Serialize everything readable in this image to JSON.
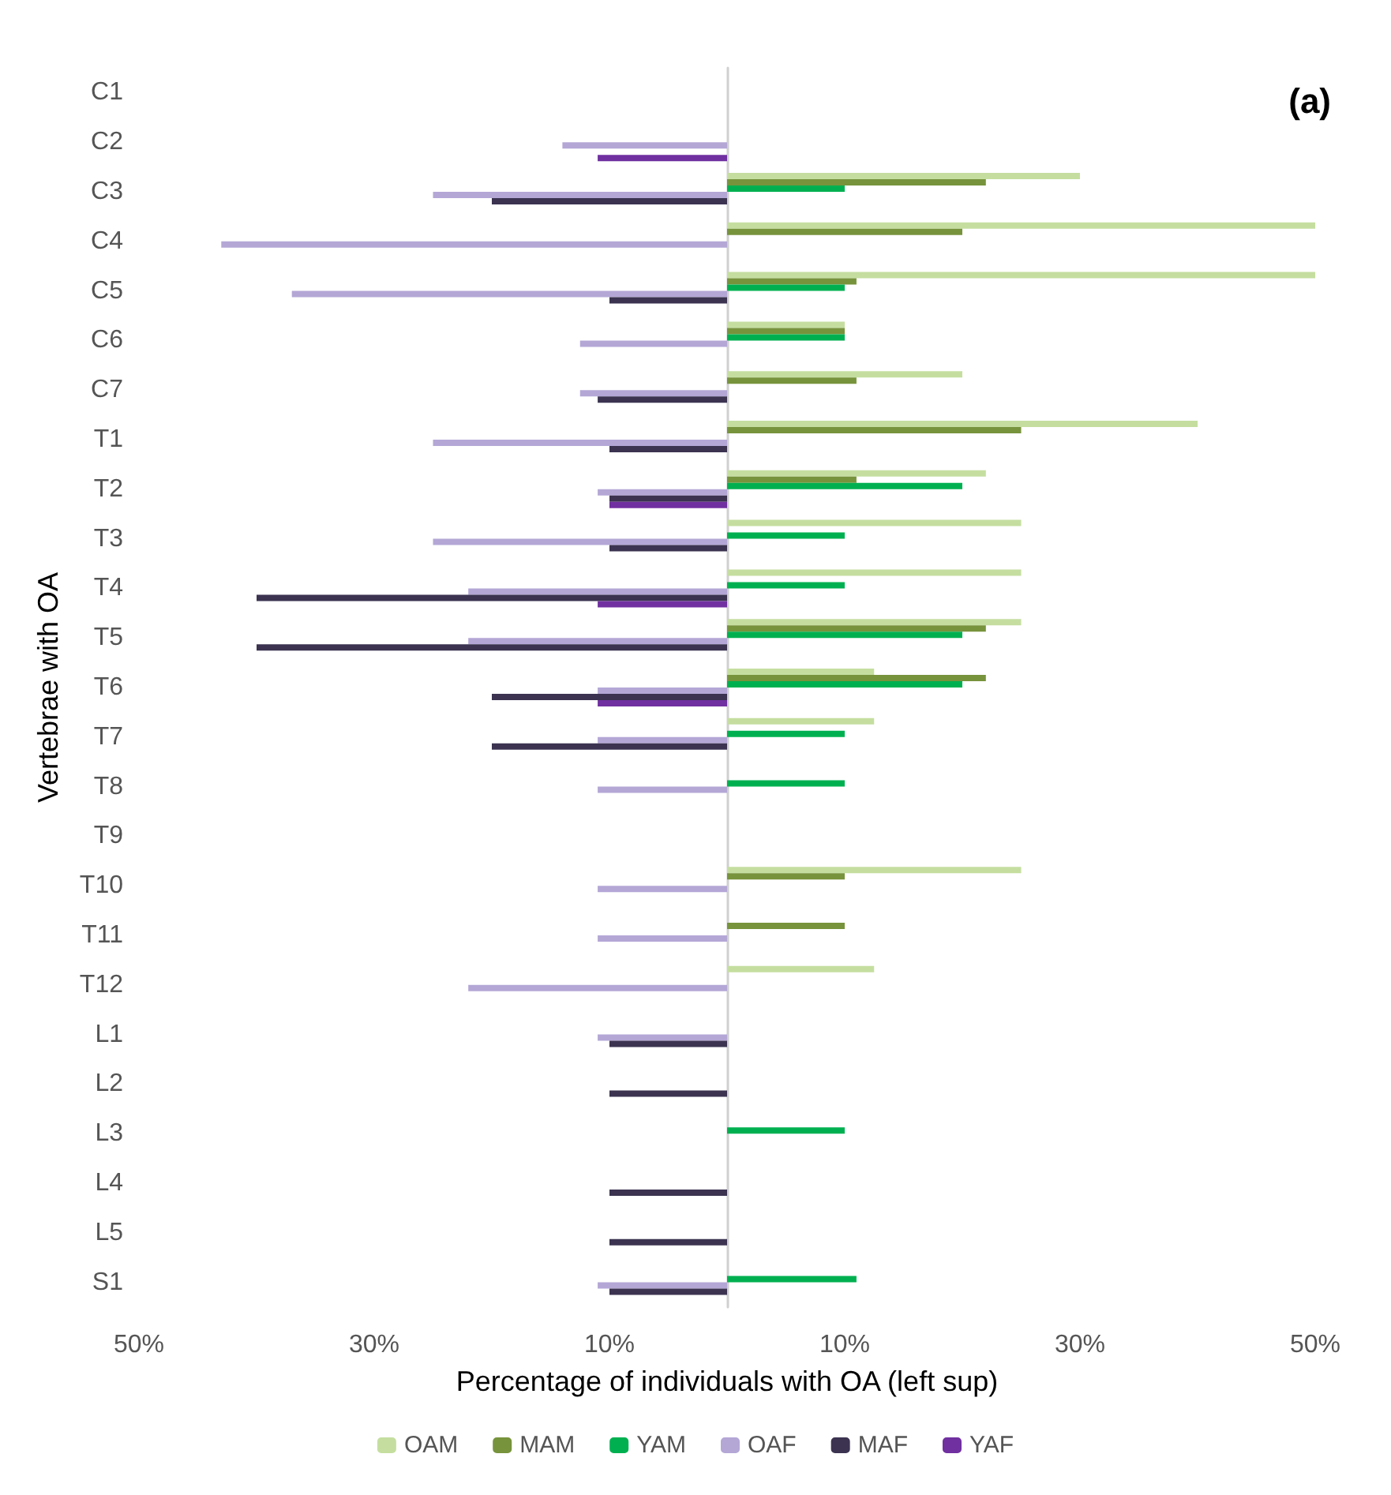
{
  "chart_data": {
    "type": "bar",
    "orientation": "horizontal",
    "xlabel": "Percentage of individuals with OA (left sup)",
    "ylabel": "Vertebrae with OA",
    "annotations": [
      "(a)"
    ],
    "categories": [
      "C1",
      "C2",
      "C3",
      "C4",
      "C5",
      "C6",
      "C7",
      "T1",
      "T2",
      "T3",
      "T4",
      "T5",
      "T6",
      "T7",
      "T8",
      "T9",
      "T10",
      "T11",
      "T12",
      "L1",
      "L2",
      "L3",
      "L4",
      "L5",
      "S1"
    ],
    "series": [
      {
        "name": "OAM",
        "color": "#c5dea0",
        "values": [
          null,
          null,
          30,
          50,
          50,
          10,
          20,
          40,
          22,
          25,
          25,
          25,
          12.5,
          12.5,
          null,
          null,
          25,
          null,
          12.5,
          null,
          null,
          null,
          null,
          null,
          null
        ]
      },
      {
        "name": "MAM",
        "color": "#77933c",
        "values": [
          null,
          null,
          22,
          20,
          11,
          10,
          11,
          25,
          11,
          null,
          null,
          22,
          22,
          null,
          null,
          null,
          10,
          10,
          null,
          null,
          null,
          null,
          null,
          null,
          null
        ]
      },
      {
        "name": "YAM",
        "color": "#00b050",
        "values": [
          null,
          null,
          10,
          null,
          10,
          10,
          null,
          null,
          20,
          10,
          10,
          20,
          20,
          10,
          10,
          null,
          null,
          null,
          null,
          null,
          null,
          10,
          null,
          null,
          11
        ]
      },
      {
        "name": "OAF",
        "color": "#b4a7d6",
        "values": [
          null,
          -14,
          -25,
          -43,
          -37,
          -12.5,
          -12.5,
          -25,
          -11,
          -25,
          -22,
          -22,
          -11,
          -11,
          -11,
          null,
          -11,
          -11,
          -22,
          -11,
          null,
          null,
          null,
          null,
          -11
        ]
      },
      {
        "name": "MAF",
        "color": "#3b3350",
        "values": [
          null,
          null,
          -20,
          null,
          -10,
          null,
          -11,
          -10,
          -10,
          -10,
          -40,
          -40,
          -20,
          -20,
          null,
          null,
          null,
          null,
          null,
          -10,
          -10,
          null,
          -10,
          -10,
          -10
        ]
      },
      {
        "name": "YAF",
        "color": "#7030a0",
        "values": [
          null,
          -11,
          null,
          null,
          null,
          null,
          null,
          null,
          -10,
          null,
          -11,
          null,
          -11,
          null,
          null,
          null,
          null,
          null,
          null,
          null,
          null,
          null,
          null,
          null,
          null
        ]
      }
    ],
    "xlim": [
      -50,
      50
    ],
    "xticks": [
      {
        "value": -50,
        "label": "50%"
      },
      {
        "value": -30,
        "label": "30%"
      },
      {
        "value": -10,
        "label": "10%"
      },
      {
        "value": 10,
        "label": "10%"
      },
      {
        "value": 30,
        "label": "30%"
      },
      {
        "value": 50,
        "label": "50%"
      }
    ],
    "grid": false,
    "legend": "bottom"
  }
}
